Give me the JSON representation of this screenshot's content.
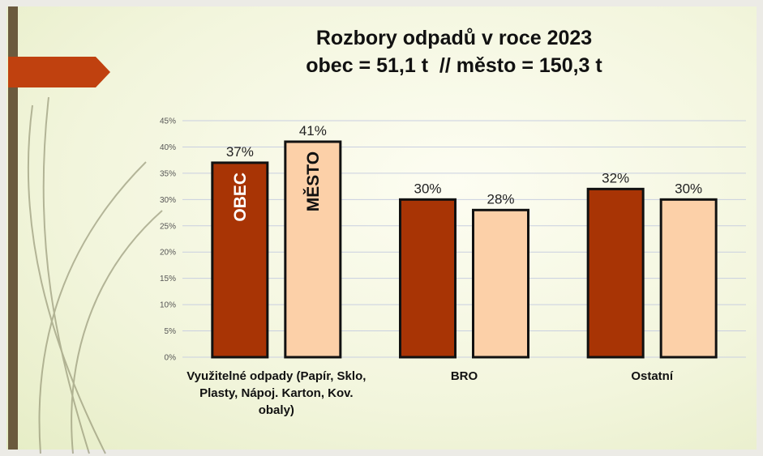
{
  "chart_data": {
    "type": "bar",
    "title": "Rozbory odpadů v roce 2023",
    "subtitle": "obec = 51,1 t  // město = 150,3 t",
    "categories": [
      "Využitelné odpady (Papír, Sklo, Plasty, Nápoj. Karton, Kov. obaly)",
      "BRO",
      "Ostatní"
    ],
    "series": [
      {
        "name": "OBEC",
        "color": "#a83405",
        "values": [
          37,
          30,
          32
        ],
        "value_labels": [
          "37%",
          "30%",
          "32%"
        ]
      },
      {
        "name": "MĚSTO",
        "color": "#fcd0a8",
        "values": [
          41,
          28,
          30
        ],
        "value_labels": [
          "41%",
          "28%",
          "30%"
        ]
      }
    ],
    "ylim": [
      0,
      45
    ],
    "yticks": [
      {
        "value": 0,
        "label": "0%"
      },
      {
        "value": 5,
        "label": "5%"
      },
      {
        "value": 10,
        "label": "10%"
      },
      {
        "value": 15,
        "label": "15%"
      },
      {
        "value": 20,
        "label": "20%"
      },
      {
        "value": 25,
        "label": "25%"
      },
      {
        "value": 30,
        "label": "30%"
      },
      {
        "value": 35,
        "label": "35%"
      },
      {
        "value": 40,
        "label": "40%"
      },
      {
        "value": 45,
        "label": "45%"
      }
    ],
    "grid": true
  }
}
